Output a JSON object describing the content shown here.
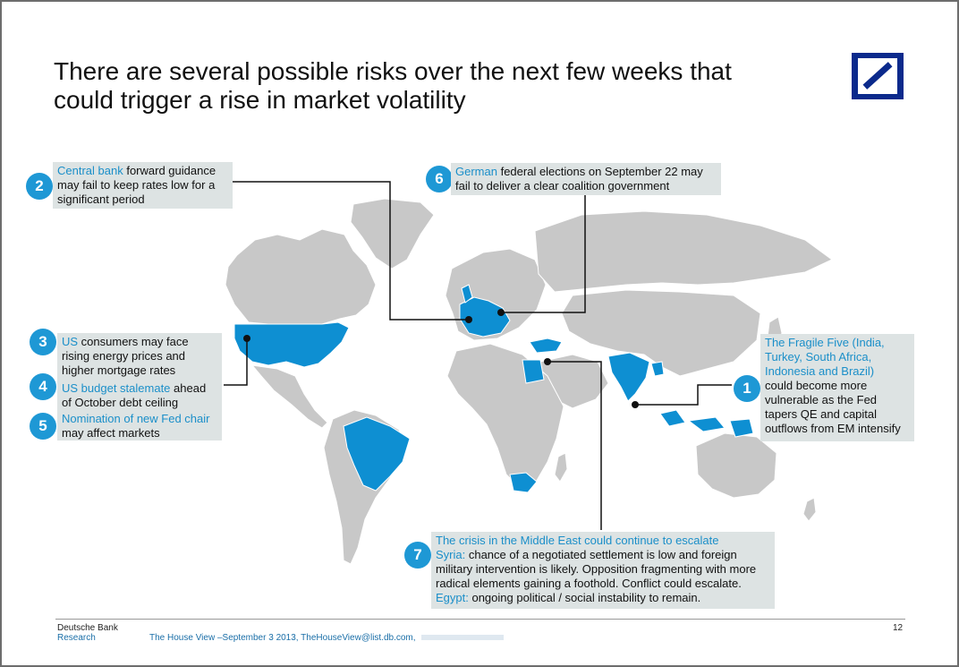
{
  "title": {
    "line1": "There are several possible risks over the next few weeks that",
    "line2": "could trigger a rise in market volatility"
  },
  "callouts": {
    "c2": {
      "number": "2",
      "hl": "Central bank",
      "l1_rest": " forward guidance",
      "l2": "may fail to keep rates low for a",
      "l3": "significant period"
    },
    "c6": {
      "number": "6",
      "hl": "German",
      "l1_rest": " federal elections on September 22 may",
      "l2": "fail to deliver a clear coalition government"
    },
    "c3": {
      "number": "3",
      "hl": "US",
      "l1_rest": " consumers may face",
      "l2": "rising energy prices and",
      "l3": "higher mortgage rates"
    },
    "c4": {
      "number": "4",
      "hl": "US budget stalemate",
      "l1_rest": " ahead",
      "l2": "of October debt ceiling"
    },
    "c5": {
      "number": "5",
      "hl": "Nomination of new Fed chair",
      "l2": "may affect markets"
    },
    "c1": {
      "number": "1",
      "hl1": "The Fragile Five (India,",
      "hl2": "Turkey, South Africa,",
      "hl3": "Indonesia and Brazil)",
      "l4": "could become more",
      "l5": "vulnerable as the Fed",
      "l6": "tapers QE and capital",
      "l7": "outflows from EM intensify"
    },
    "c7": {
      "number": "7",
      "hl1": "The crisis in the Middle East could continue to escalate",
      "hl2": "Syria:",
      "l2_rest": " chance of a negotiated settlement is low and foreign",
      "l3": "military intervention is likely. Opposition fragmenting with more",
      "l4": "radical elements gaining a foothold. Conflict could escalate.",
      "hl5": "Egypt:",
      "l5_rest": " ongoing political / social instability to remain."
    }
  },
  "footer": {
    "org1": "Deutsche Bank",
    "org2": "Research",
    "center": "The House View –September 3 2013, TheHouseView@list.db.com,",
    "page": "12"
  },
  "colors": {
    "highlight": "#1e98d5",
    "land": "#c8c8c8",
    "highlighted_land": "#0e8fd2",
    "callout_bg": "#dde3e3",
    "logo": "#0b2a8c"
  }
}
